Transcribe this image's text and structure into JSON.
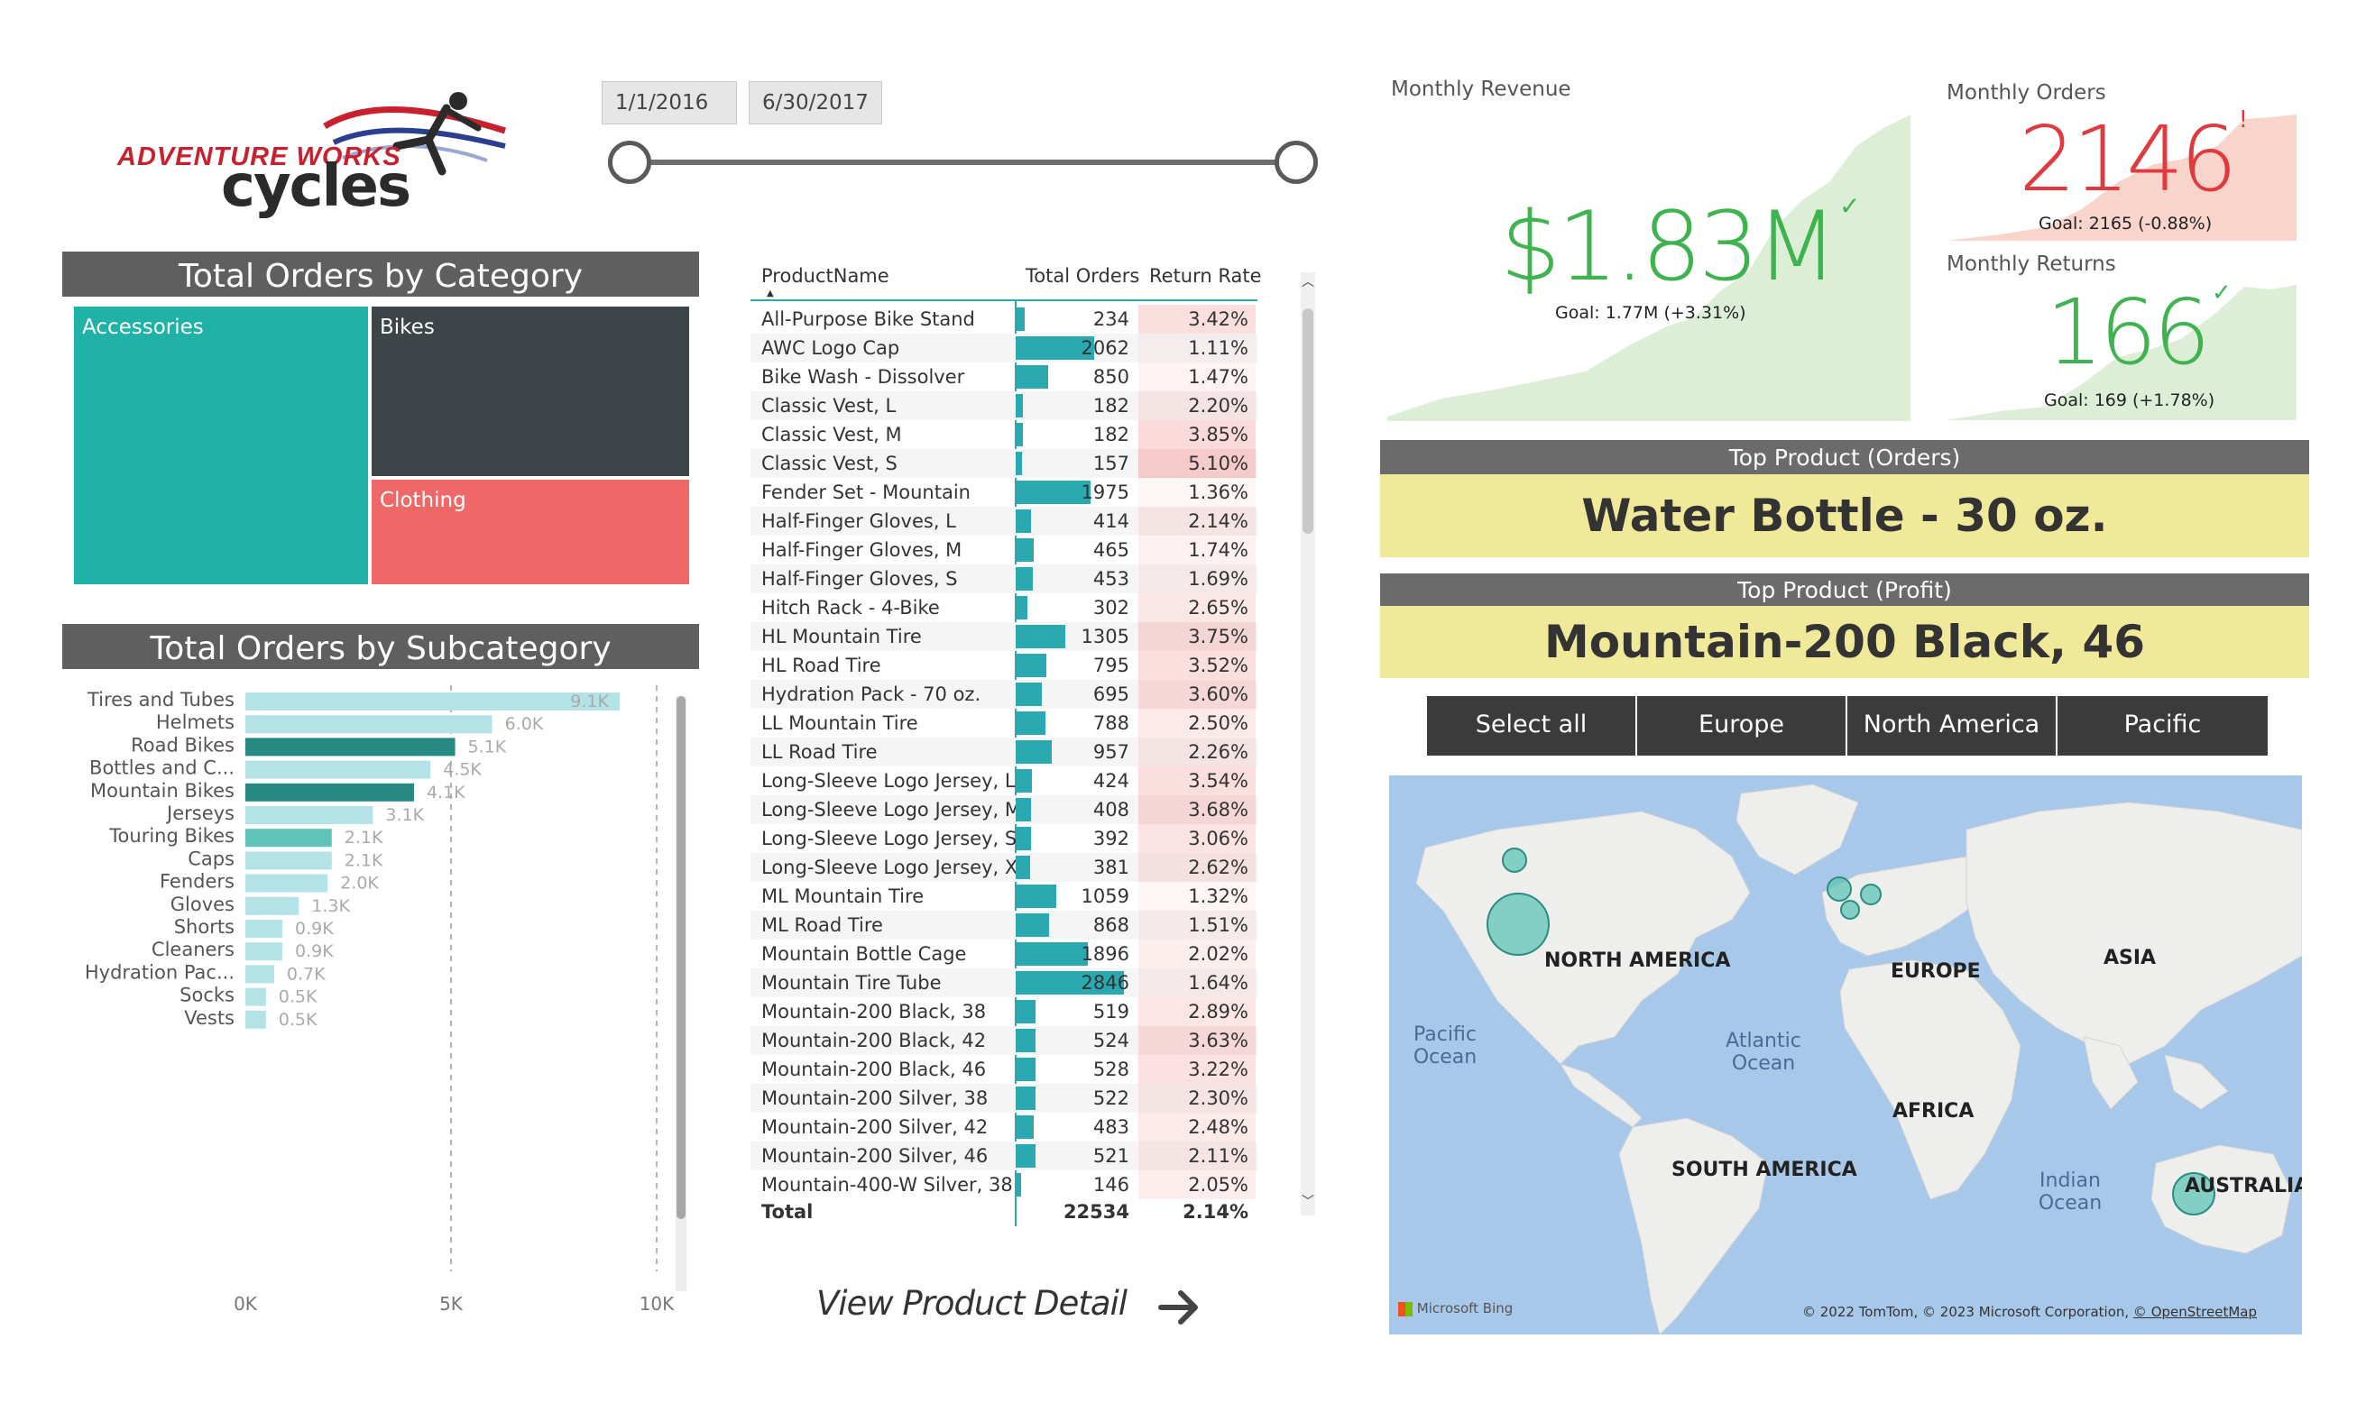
{
  "logo": {
    "line1": "ADVENTURE WORKS",
    "line2": "cycles"
  },
  "date_slicer": {
    "start": "1/1/2016",
    "end": "6/30/2017"
  },
  "category_chart": {
    "title": "Total Orders by Category",
    "tiles": [
      {
        "label": "Accessories",
        "color": "#20b2a6"
      },
      {
        "label": "Bikes",
        "color": "#3d4548"
      },
      {
        "label": "Clothing",
        "color": "#ef6868"
      }
    ]
  },
  "subcategory_chart": {
    "title": "Total Orders by Subcategory",
    "chart_data": {
      "type": "bar",
      "categories": [
        "Tires and Tubes",
        "Helmets",
        "Road Bikes",
        "Bottles and C...",
        "Mountain Bikes",
        "Jerseys",
        "Touring Bikes",
        "Caps",
        "Fenders",
        "Gloves",
        "Shorts",
        "Cleaners",
        "Hydration Pac...",
        "Socks",
        "Vests"
      ],
      "values": [
        9.1,
        6.0,
        5.1,
        4.5,
        4.1,
        3.1,
        2.1,
        2.1,
        2.0,
        1.3,
        0.9,
        0.9,
        0.7,
        0.5,
        0.5
      ],
      "value_labels": [
        "9.1K",
        "6.0K",
        "5.1K",
        "4.5K",
        "4.1K",
        "3.1K",
        "2.1K",
        "2.1K",
        "2.0K",
        "1.3K",
        "0.9K",
        "0.9K",
        "0.7K",
        "0.5K",
        "0.5K"
      ],
      "colors": [
        "#b3e3e6",
        "#b3e3e6",
        "#268a82",
        "#b3e3e6",
        "#268a82",
        "#b3e3e6",
        "#5fc3ba",
        "#b3e3e6",
        "#b3e3e6",
        "#b3e3e6",
        "#b3e3e6",
        "#b3e3e6",
        "#b3e3e6",
        "#b3e3e6",
        "#b3e3e6"
      ],
      "x_ticks": [
        "0K",
        "5K",
        "10K"
      ],
      "xlim": [
        0,
        10
      ],
      "grid": false
    }
  },
  "product_table": {
    "columns": [
      "ProductName",
      "Total Orders",
      "Return Rate"
    ],
    "max_orders": 2846,
    "rows": [
      {
        "name": "All-Purpose Bike Stand",
        "orders": 234,
        "rate": "3.42%",
        "rate_num": 3.42
      },
      {
        "name": "AWC Logo Cap",
        "orders": 2062,
        "rate": "1.11%",
        "rate_num": 1.11
      },
      {
        "name": "Bike Wash - Dissolver",
        "orders": 850,
        "rate": "1.47%",
        "rate_num": 1.47
      },
      {
        "name": "Classic Vest, L",
        "orders": 182,
        "rate": "2.20%",
        "rate_num": 2.2
      },
      {
        "name": "Classic Vest, M",
        "orders": 182,
        "rate": "3.85%",
        "rate_num": 3.85
      },
      {
        "name": "Classic Vest, S",
        "orders": 157,
        "rate": "5.10%",
        "rate_num": 5.1
      },
      {
        "name": "Fender Set - Mountain",
        "orders": 1975,
        "rate": "1.36%",
        "rate_num": 1.36
      },
      {
        "name": "Half-Finger Gloves, L",
        "orders": 414,
        "rate": "2.14%",
        "rate_num": 2.14
      },
      {
        "name": "Half-Finger Gloves, M",
        "orders": 465,
        "rate": "1.74%",
        "rate_num": 1.74
      },
      {
        "name": "Half-Finger Gloves, S",
        "orders": 453,
        "rate": "1.69%",
        "rate_num": 1.69
      },
      {
        "name": "Hitch Rack - 4-Bike",
        "orders": 302,
        "rate": "2.65%",
        "rate_num": 2.65
      },
      {
        "name": "HL Mountain Tire",
        "orders": 1305,
        "rate": "3.75%",
        "rate_num": 3.75
      },
      {
        "name": "HL Road Tire",
        "orders": 795,
        "rate": "3.52%",
        "rate_num": 3.52
      },
      {
        "name": "Hydration Pack - 70 oz.",
        "orders": 695,
        "rate": "3.60%",
        "rate_num": 3.6
      },
      {
        "name": "LL Mountain Tire",
        "orders": 788,
        "rate": "2.50%",
        "rate_num": 2.5
      },
      {
        "name": "LL Road Tire",
        "orders": 957,
        "rate": "2.26%",
        "rate_num": 2.26
      },
      {
        "name": "Long-Sleeve Logo Jersey, L",
        "orders": 424,
        "rate": "3.54%",
        "rate_num": 3.54
      },
      {
        "name": "Long-Sleeve Logo Jersey, M",
        "orders": 408,
        "rate": "3.68%",
        "rate_num": 3.68
      },
      {
        "name": "Long-Sleeve Logo Jersey, S",
        "orders": 392,
        "rate": "3.06%",
        "rate_num": 3.06
      },
      {
        "name": "Long-Sleeve Logo Jersey, XL",
        "orders": 381,
        "rate": "2.62%",
        "rate_num": 2.62
      },
      {
        "name": "ML Mountain Tire",
        "orders": 1059,
        "rate": "1.32%",
        "rate_num": 1.32
      },
      {
        "name": "ML Road Tire",
        "orders": 868,
        "rate": "1.51%",
        "rate_num": 1.51
      },
      {
        "name": "Mountain Bottle Cage",
        "orders": 1896,
        "rate": "2.02%",
        "rate_num": 2.02
      },
      {
        "name": "Mountain Tire Tube",
        "orders": 2846,
        "rate": "1.64%",
        "rate_num": 1.64
      },
      {
        "name": "Mountain-200 Black, 38",
        "orders": 519,
        "rate": "2.89%",
        "rate_num": 2.89
      },
      {
        "name": "Mountain-200 Black, 42",
        "orders": 524,
        "rate": "3.63%",
        "rate_num": 3.63
      },
      {
        "name": "Mountain-200 Black, 46",
        "orders": 528,
        "rate": "3.22%",
        "rate_num": 3.22
      },
      {
        "name": "Mountain-200 Silver, 38",
        "orders": 522,
        "rate": "2.30%",
        "rate_num": 2.3
      },
      {
        "name": "Mountain-200 Silver, 42",
        "orders": 483,
        "rate": "2.48%",
        "rate_num": 2.48
      },
      {
        "name": "Mountain-200 Silver, 46",
        "orders": 521,
        "rate": "2.11%",
        "rate_num": 2.11
      },
      {
        "name": "Mountain-400-W Silver, 38",
        "orders": 146,
        "rate": "2.05%",
        "rate_num": 2.05
      }
    ],
    "total_label": "Total",
    "total_orders": "22534",
    "total_rate": "2.14%",
    "bar_color": "#2aaab0"
  },
  "view_detail": {
    "label": "View Product Detail",
    "arrow": "arrow-right-icon"
  },
  "kpi_revenue": {
    "title": "Monthly Revenue",
    "value": "$1.83M",
    "goal": "Goal: 1.77M (+3.31%)",
    "color": "#3fb34f",
    "status": "check-icon"
  },
  "kpi_orders": {
    "title": "Monthly Orders",
    "value": "2146",
    "goal": "Goal: 2165 (-0.88%)",
    "color": "#e0393e",
    "status": "exclamation-icon"
  },
  "kpi_returns": {
    "title": "Monthly Returns",
    "value": "166",
    "goal": "Goal: 169 (+1.78%)",
    "color": "#3fb34f",
    "status": "check-icon"
  },
  "top_orders": {
    "title": "Top Product (Orders)",
    "value": "Water Bottle - 30 oz."
  },
  "top_profit": {
    "title": "Top Product (Profit)",
    "value": "Mountain-200 Black, 46"
  },
  "region_slicer": {
    "options": [
      "Select all",
      "Europe",
      "North America",
      "Pacific"
    ]
  },
  "map": {
    "labels": {
      "na": "NORTH AMERICA",
      "eu": "EUROPE",
      "asia": "ASIA",
      "africa": "AFRICA",
      "sa": "SOUTH AMERICA",
      "au": "AUSTRALIA"
    },
    "oceans": {
      "pacific": "Pacific\nOcean",
      "atlantic": "Atlantic\nOcean",
      "indian": "Indian\nOcean"
    },
    "attribution": "© 2022 TomTom, © 2023 Microsoft Corporation, ",
    "osm": "© OpenStreetMap",
    "bing": "Microsoft Bing",
    "bubble_color": "#5ec4b6"
  }
}
